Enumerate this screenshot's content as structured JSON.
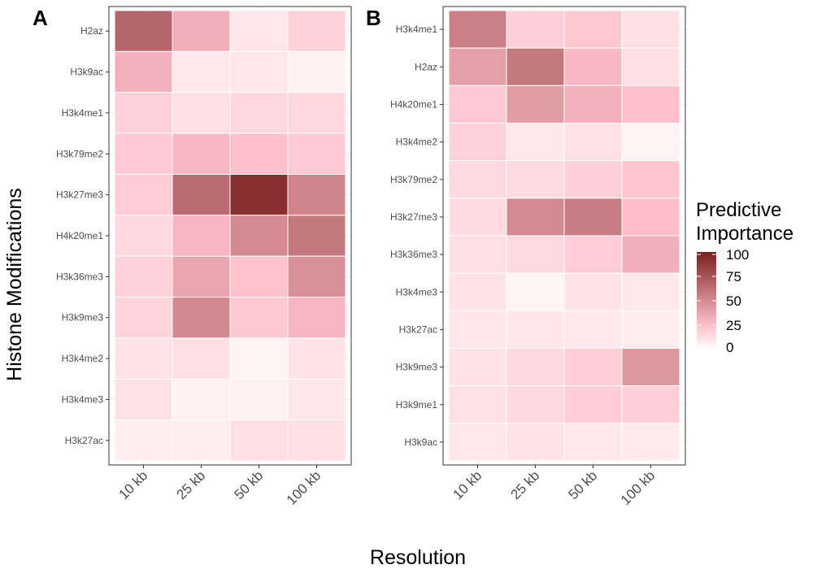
{
  "chart_data": {
    "type": "heatmap",
    "xlabel": "Resolution",
    "ylabel": "Histone Modifications",
    "legend": {
      "title_lines": [
        "Predictive",
        "Importance"
      ],
      "ticks": [
        100,
        75,
        50,
        25,
        0
      ],
      "range": [
        0,
        100
      ],
      "low_color": "#ffffff",
      "mid_color": "#ffc0cb",
      "high_color": "#7a1f1f",
      "placement": "right"
    },
    "panels": [
      {
        "label": "A",
        "categories": [
          "10 kb",
          "25 kb",
          "50 kb",
          "100 kb"
        ],
        "rows": [
          "H2az",
          "H3k9ac",
          "H3k4me1",
          "H3k79me2",
          "H3k27me3",
          "H4k20me1",
          "H3k36me3",
          "H3k9me3",
          "H3k4me2",
          "H3k4me3",
          "H3k27ac"
        ],
        "values": [
          [
            67,
            33,
            10,
            18
          ],
          [
            32,
            9,
            10,
            6
          ],
          [
            18,
            13,
            16,
            16
          ],
          [
            21,
            29,
            25,
            21
          ],
          [
            20,
            64,
            92,
            53
          ],
          [
            16,
            30,
            50,
            58
          ],
          [
            18,
            37,
            24,
            47
          ],
          [
            17,
            51,
            22,
            30
          ],
          [
            11,
            13,
            5,
            11
          ],
          [
            12,
            6,
            6,
            10
          ],
          [
            7,
            7,
            13,
            13
          ]
        ]
      },
      {
        "label": "B",
        "categories": [
          "10 kb",
          "25 kb",
          "50 kb",
          "100 kb"
        ],
        "rows": [
          "H3k4me1",
          "H2az",
          "H4k20me1",
          "H3k4me2",
          "H3k79me2",
          "H3k27me3",
          "H3k36me3",
          "H3k4me3",
          "H3k27ac",
          "H3k9me3",
          "H3k9me1",
          "H3k9ac"
        ],
        "values": [
          [
            55,
            19,
            22,
            13
          ],
          [
            40,
            58,
            29,
            13
          ],
          [
            21,
            42,
            32,
            25
          ],
          [
            18,
            9,
            12,
            5
          ],
          [
            15,
            14,
            19,
            23
          ],
          [
            14,
            50,
            56,
            26
          ],
          [
            13,
            15,
            20,
            33
          ],
          [
            11,
            4,
            11,
            9
          ],
          [
            10,
            10,
            9,
            7
          ],
          [
            11,
            16,
            20,
            44
          ],
          [
            12,
            16,
            20,
            19
          ],
          [
            9,
            11,
            9,
            8
          ]
        ]
      }
    ]
  }
}
